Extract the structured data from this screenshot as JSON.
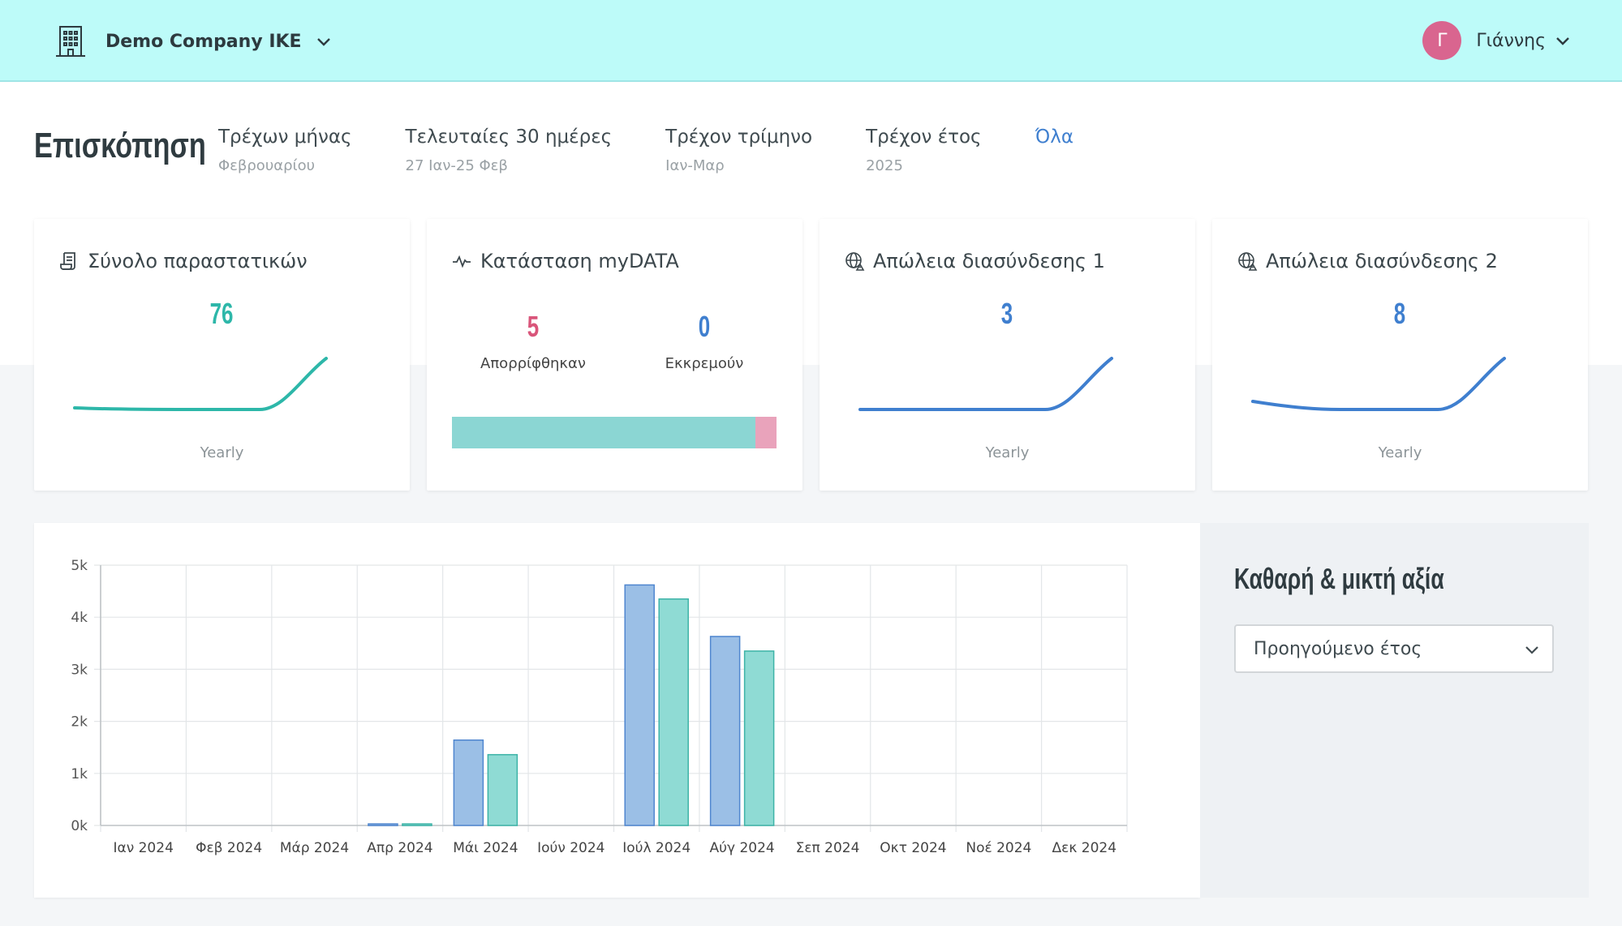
{
  "header": {
    "company_name": "Demo Company IKE",
    "user_initial": "Γ",
    "user_name": "Γιάννης"
  },
  "overview": {
    "title": "Επισκόπηση",
    "periods": [
      {
        "label": "Τρέχων μήνας",
        "sub": "Φεβρουαρίου",
        "active": false
      },
      {
        "label": "Τελευταίες 30 ημέρες",
        "sub": "27 Ιαν-25 Φεβ",
        "active": false
      },
      {
        "label": "Τρέχον τρίμηνο",
        "sub": "Ιαν-Μαρ",
        "active": false
      },
      {
        "label": "Τρέχον έτος",
        "sub": "2025",
        "active": false
      },
      {
        "label": "Όλα",
        "sub": "",
        "active": true
      }
    ]
  },
  "cards": {
    "invoices": {
      "title": "Σύνολο παραστατικών",
      "value": "76",
      "footer": "Yearly",
      "color": "#2db7a9"
    },
    "mydata": {
      "title": "Κατάσταση myDATA",
      "rejected_value": "5",
      "rejected_label": "Απορρίφθηκαν",
      "rejected_color": "#d9557a",
      "pending_value": "0",
      "pending_label": "Εκκρεμούν",
      "pending_color": "#3f7fcf",
      "bar_ok_fraction": 0.935,
      "bar_ok_color": "#8bd6d3",
      "bar_rejected_color": "#e9a3bb"
    },
    "loss1": {
      "title": "Απώλεια διασύνδεσης 1",
      "value": "3",
      "footer": "Yearly",
      "color": "#3f7fcf"
    },
    "loss2": {
      "title": "Απώλεια διασύνδεσης 2",
      "value": "8",
      "footer": "Yearly",
      "color": "#3f7fcf"
    }
  },
  "chart_data": {
    "type": "bar",
    "categories": [
      "Ιαν 2024",
      "Φεβ 2024",
      "Μάρ 2024",
      "Απρ 2024",
      "Μάι 2024",
      "Ιούν 2024",
      "Ιούλ 2024",
      "Αύγ 2024",
      "Σεπ 2024",
      "Οκτ 2024",
      "Νοέ 2024",
      "Δεκ 2024"
    ],
    "series": [
      {
        "values": [
          0,
          0,
          0,
          30,
          1640,
          0,
          4620,
          3630,
          0,
          0,
          0,
          0
        ],
        "color": "#9bbfe6"
      },
      {
        "values": [
          0,
          0,
          0,
          30,
          1360,
          0,
          4350,
          3350,
          0,
          0,
          0,
          0
        ],
        "color": "#8fdbd4"
      }
    ],
    "y_ticks": [
      "0k",
      "1k",
      "2k",
      "3k",
      "4k",
      "5k"
    ],
    "ylim": [
      0,
      5000
    ],
    "grid": true
  },
  "side": {
    "title": "Καθαρή & μικτή αξία",
    "select_value": "Προηγούμενο έτος"
  }
}
